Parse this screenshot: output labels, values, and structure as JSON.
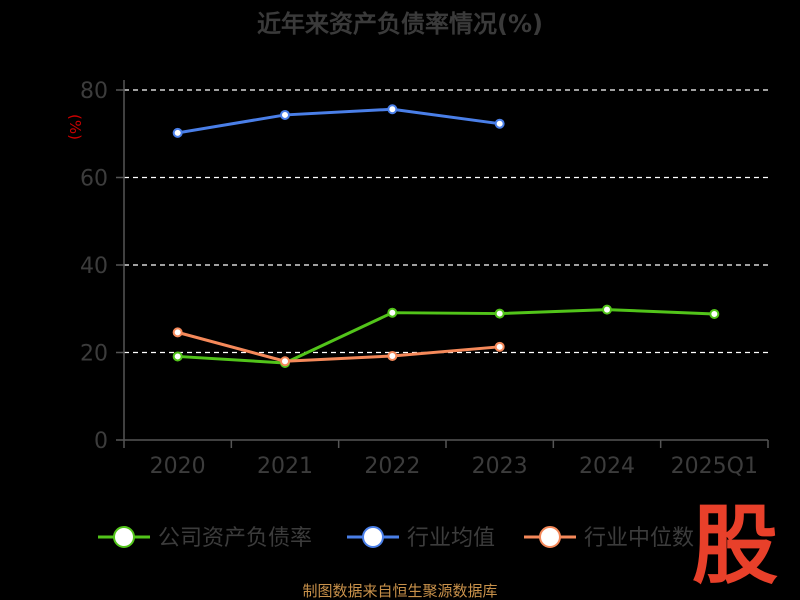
{
  "chart_data": {
    "type": "line",
    "title": "近年来资产负债率情况(%)",
    "ylabel": "(%)",
    "xlabel": "",
    "categories": [
      "2020",
      "2021",
      "2022",
      "2023",
      "2024",
      "2025Q1"
    ],
    "ylim": [
      0,
      80
    ],
    "yticks": [
      0,
      20,
      40,
      60,
      80
    ],
    "grid": true,
    "legend_position": "bottom",
    "series": [
      {
        "name": "公司资产负债率",
        "color": "#52c41a",
        "values": [
          19.1,
          17.6,
          29.1,
          28.9,
          29.8,
          28.8
        ]
      },
      {
        "name": "行业均值",
        "color": "#4a7fe8",
        "values": [
          70.2,
          74.3,
          75.6,
          72.3,
          null,
          null
        ]
      },
      {
        "name": "行业中位数",
        "color": "#f5895a",
        "values": [
          24.6,
          18.0,
          19.2,
          21.3,
          null,
          null
        ]
      }
    ]
  },
  "source": "制图数据来自恒生聚源数据库",
  "logo_text": "股",
  "colors": {
    "background": "#000000",
    "grid": "#ffffff",
    "axis": "#555555"
  }
}
